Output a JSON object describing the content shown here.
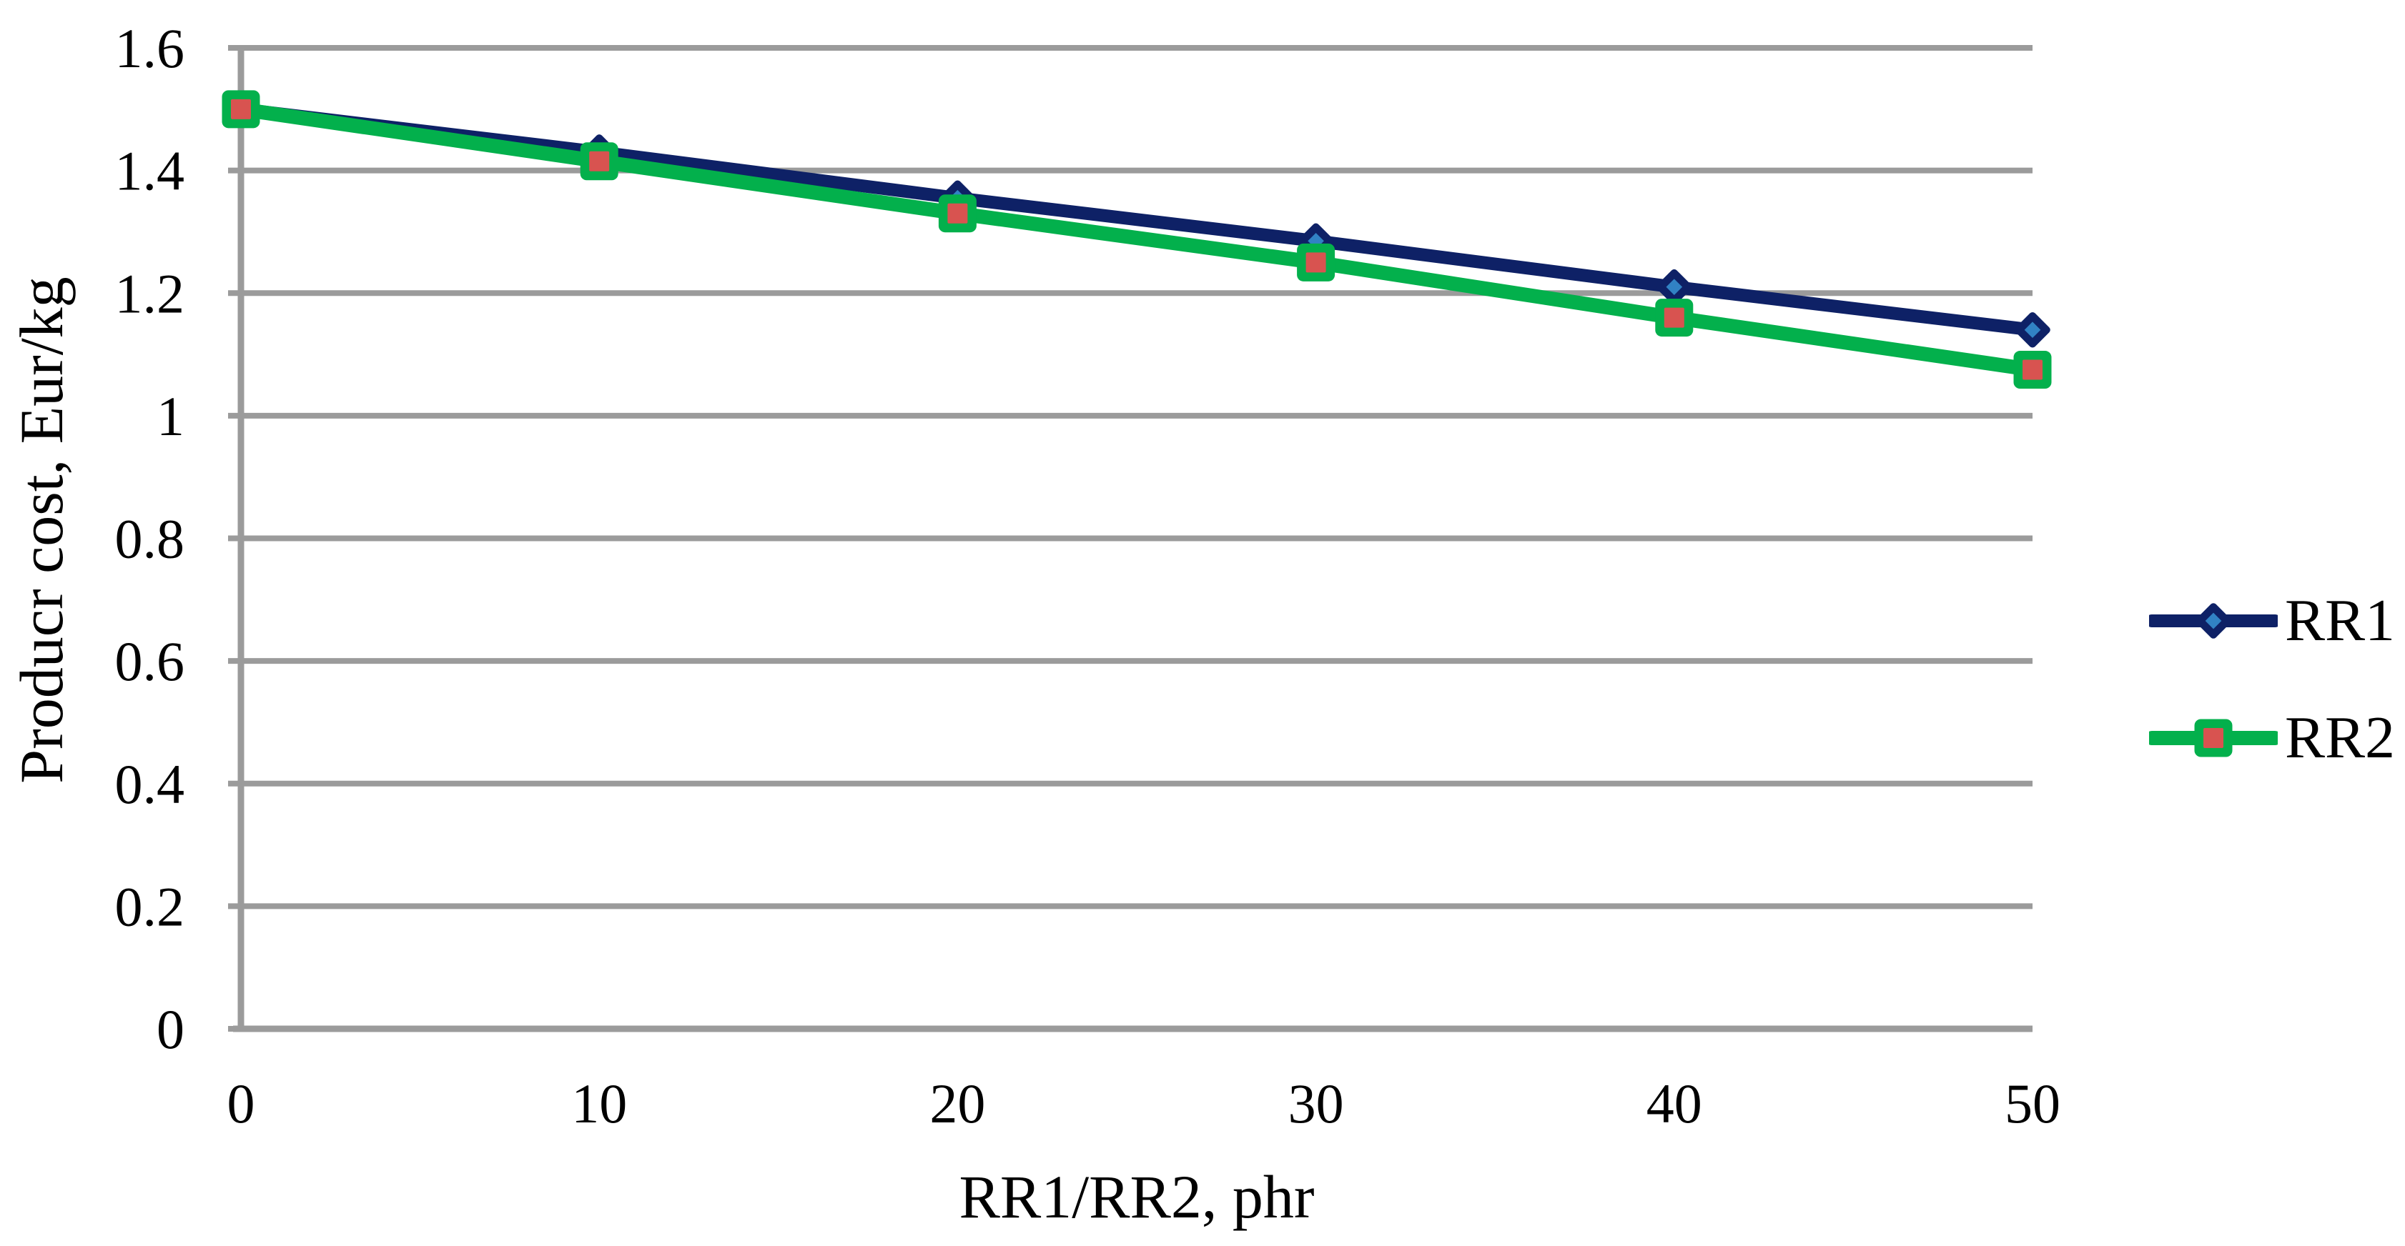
{
  "chart_data": {
    "type": "line",
    "title": "",
    "xlabel": "RR1/RR2, phr",
    "ylabel": "Producr cost, Eur/kg",
    "x": [
      0,
      10,
      20,
      30,
      40,
      50
    ],
    "series": [
      {
        "name": "RR1",
        "values": [
          1.5,
          1.43,
          1.355,
          1.285,
          1.21,
          1.14
        ],
        "color": "#0e2166",
        "marker": "diamond",
        "marker_inner_color": "#3182c4",
        "line_width": 18
      },
      {
        "name": "RR2",
        "values": [
          1.5,
          1.415,
          1.33,
          1.25,
          1.16,
          1.075
        ],
        "color": "#03b04c",
        "marker": "square",
        "marker_inner_color": "#d85350",
        "line_width": 20
      }
    ],
    "xlim": [
      0,
      50
    ],
    "ylim": [
      0,
      1.6
    ],
    "x_tick_values": [
      0,
      10,
      20,
      30,
      40,
      50
    ],
    "x_tick_labels": [
      "0",
      "10",
      "20",
      "30",
      "40",
      "50"
    ],
    "y_tick_values": [
      0,
      0.2,
      0.4,
      0.6,
      0.8,
      1,
      1.2,
      1.4,
      1.6
    ],
    "y_tick_labels": [
      "0",
      "0.2",
      "0.4",
      "0.6",
      "0.8",
      "1",
      "1.2",
      "1.4",
      "1.6"
    ],
    "grid": "horizontal",
    "legend_position": "right",
    "gridline_color": "#9b9b9b",
    "axis_color": "#9b9b9b",
    "text_color": "#000000",
    "background_color": "#ffffff"
  },
  "legend": {
    "items": [
      {
        "label": "RR1"
      },
      {
        "label": "RR2"
      }
    ]
  }
}
